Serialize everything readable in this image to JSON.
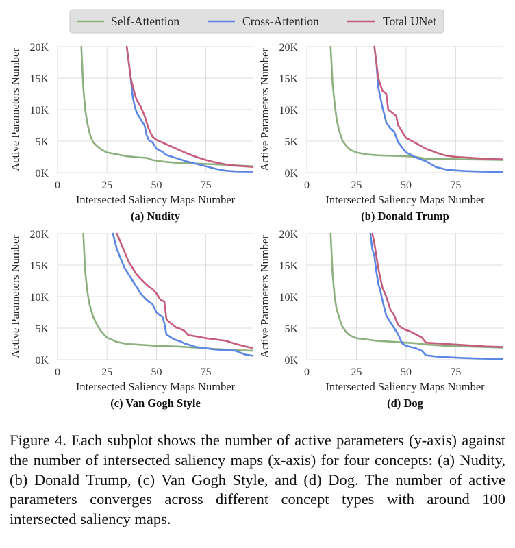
{
  "legend": {
    "entries": [
      {
        "label": "Self-Attention",
        "color": "#8db07f"
      },
      {
        "label": "Cross-Attention",
        "color": "#5b86e5"
      },
      {
        "label": "Total UNet",
        "color": "#c55c7a"
      }
    ]
  },
  "axes": {
    "ylabel": "Active Parameters Number",
    "xlabel": "Intersected Saliency Maps Number",
    "xticks": [
      0,
      25,
      50,
      75
    ],
    "xtick_labels": [
      "0",
      "25",
      "50",
      "75"
    ],
    "yticks": [
      0,
      5000,
      10000,
      15000,
      20000
    ],
    "ytick_labels": [
      "0K",
      "5K",
      "10K",
      "15K",
      "20K"
    ]
  },
  "chart_data": [
    {
      "type": "line",
      "title": "(a) Nudity",
      "xlabel": "Intersected Saliency Maps Number",
      "ylabel": "Active Parameters Number",
      "xlim": [
        0,
        99
      ],
      "ylim": [
        0,
        20000
      ],
      "series": [
        {
          "name": "Self-Attention",
          "color": "#8db07f",
          "x": [
            12,
            13,
            14,
            15,
            16,
            17,
            18,
            20,
            22,
            25,
            30,
            35,
            40,
            45,
            48,
            50,
            55,
            60,
            70,
            80,
            90,
            99
          ],
          "y": [
            20000,
            13500,
            10000,
            8000,
            6500,
            5500,
            4800,
            4200,
            3700,
            3200,
            2900,
            2600,
            2450,
            2350,
            2000,
            1900,
            1700,
            1550,
            1450,
            1300,
            1150,
            1000
          ]
        },
        {
          "name": "Cross-Attention",
          "color": "#5b86e5",
          "x": [
            35,
            37,
            38,
            39,
            40,
            42,
            44,
            45,
            46,
            48,
            50,
            53,
            55,
            60,
            65,
            70,
            75,
            80,
            85,
            90,
            99
          ],
          "y": [
            20000,
            15000,
            12000,
            10500,
            9500,
            8500,
            7500,
            6000,
            5200,
            4800,
            3800,
            3300,
            2800,
            2300,
            1800,
            1400,
            1000,
            600,
            300,
            200,
            150
          ]
        },
        {
          "name": "Total UNet",
          "color": "#c55c7a",
          "x": [
            35,
            37,
            39,
            40,
            42,
            44,
            46,
            48,
            50,
            55,
            60,
            65,
            70,
            75,
            80,
            85,
            90,
            99
          ],
          "y": [
            20000,
            15000,
            12500,
            11500,
            10500,
            9000,
            7000,
            5700,
            5200,
            4500,
            3800,
            3100,
            2500,
            2000,
            1600,
            1300,
            1100,
            900
          ]
        }
      ]
    },
    {
      "type": "line",
      "title": "(b) Donald Trump",
      "xlabel": "Intersected Saliency Maps Number",
      "ylabel": "Active Parameters Number",
      "xlim": [
        0,
        99
      ],
      "ylim": [
        0,
        20000
      ],
      "series": [
        {
          "name": "Self-Attention",
          "color": "#8db07f",
          "x": [
            12,
            13,
            14,
            15,
            16,
            17,
            18,
            20,
            22,
            25,
            30,
            35,
            40,
            45,
            50,
            55,
            60,
            70,
            80,
            90,
            99
          ],
          "y": [
            20000,
            14000,
            11000,
            8500,
            7000,
            6000,
            5000,
            4200,
            3600,
            3200,
            2900,
            2750,
            2700,
            2650,
            2600,
            2500,
            2200,
            2150,
            2100,
            2050,
            2000
          ]
        },
        {
          "name": "Cross-Attention",
          "color": "#5b86e5",
          "x": [
            34,
            35,
            36,
            37,
            38,
            40,
            42,
            44,
            46,
            48,
            50,
            52,
            55,
            60,
            65,
            70,
            75,
            80,
            90,
            99
          ],
          "y": [
            20000,
            17500,
            13500,
            12000,
            10500,
            8000,
            7000,
            6500,
            4800,
            4000,
            3200,
            2900,
            2400,
            1800,
            900,
            500,
            350,
            250,
            150,
            100
          ]
        },
        {
          "name": "Total UNet",
          "color": "#c55c7a",
          "x": [
            34,
            35,
            36,
            37,
            38,
            40,
            41,
            43,
            45,
            46,
            48,
            50,
            53,
            56,
            60,
            65,
            70,
            75,
            80,
            90,
            99
          ],
          "y": [
            20000,
            17500,
            15000,
            14000,
            13000,
            12500,
            10000,
            9500,
            9000,
            7500,
            6500,
            5500,
            5000,
            4500,
            3800,
            3200,
            2700,
            2500,
            2400,
            2200,
            2100
          ]
        }
      ]
    },
    {
      "type": "line",
      "title": "(c) Van Gogh Style",
      "xlabel": "Intersected Saliency Maps Number",
      "ylabel": "Active Parameters Number",
      "xlim": [
        0,
        99
      ],
      "ylim": [
        0,
        20000
      ],
      "series": [
        {
          "name": "Self-Attention",
          "color": "#8db07f",
          "x": [
            13,
            14,
            15,
            16,
            17,
            18,
            20,
            22,
            25,
            30,
            35,
            40,
            45,
            50,
            55,
            60,
            70,
            80,
            90,
            99
          ],
          "y": [
            20000,
            14000,
            11000,
            9000,
            7800,
            6800,
            5500,
            4500,
            3500,
            2800,
            2500,
            2400,
            2300,
            2200,
            2150,
            2100,
            1900,
            1700,
            1500,
            1400
          ]
        },
        {
          "name": "Cross-Attention",
          "color": "#5b86e5",
          "x": [
            28,
            30,
            32,
            34,
            36,
            38,
            40,
            42,
            44,
            46,
            48,
            50,
            52,
            53,
            54,
            55,
            56,
            58,
            60,
            62,
            64,
            66,
            70,
            80,
            90,
            95,
            99
          ],
          "y": [
            20000,
            17500,
            16000,
            14500,
            13500,
            12500,
            11500,
            10500,
            9800,
            9200,
            8800,
            7500,
            7000,
            6800,
            5800,
            4000,
            3800,
            3400,
            3100,
            2900,
            2600,
            2400,
            2000,
            1600,
            1400,
            800,
            600
          ]
        },
        {
          "name": "Total UNet",
          "color": "#c55c7a",
          "x": [
            30,
            32,
            34,
            36,
            38,
            40,
            42,
            44,
            46,
            48,
            50,
            52,
            54,
            55,
            56,
            58,
            60,
            62,
            64,
            66,
            70,
            75,
            80,
            85,
            90,
            95,
            99
          ],
          "y": [
            20000,
            18500,
            17000,
            15500,
            14500,
            13500,
            12800,
            12200,
            11600,
            11200,
            10500,
            9500,
            9200,
            6500,
            6100,
            5600,
            5100,
            4900,
            4600,
            3900,
            3700,
            3400,
            3200,
            3000,
            2500,
            2100,
            1800
          ]
        }
      ]
    },
    {
      "type": "line",
      "title": "(d) Dog",
      "xlabel": "Intersected Saliency Maps Number",
      "ylabel": "Active Parameters Number",
      "xlim": [
        0,
        99
      ],
      "ylim": [
        0,
        20000
      ],
      "series": [
        {
          "name": "Self-Attention",
          "color": "#8db07f",
          "x": [
            12,
            13,
            14,
            15,
            16,
            17,
            18,
            20,
            22,
            25,
            30,
            35,
            40,
            45,
            50,
            55,
            60,
            70,
            80,
            90,
            99
          ],
          "y": [
            20000,
            13500,
            10000,
            8000,
            7000,
            6000,
            5200,
            4300,
            3800,
            3400,
            3200,
            3000,
            2900,
            2800,
            2700,
            2600,
            2400,
            2200,
            2100,
            2000,
            1900
          ]
        },
        {
          "name": "Cross-Attention",
          "color": "#5b86e5",
          "x": [
            32,
            33,
            34,
            35,
            36,
            37,
            38,
            40,
            42,
            44,
            46,
            48,
            50,
            55,
            58,
            60,
            65,
            70,
            80,
            90,
            99
          ],
          "y": [
            20000,
            17500,
            16500,
            14000,
            12000,
            11000,
            9500,
            7000,
            6000,
            5000,
            4000,
            2600,
            2200,
            1800,
            1400,
            700,
            500,
            400,
            250,
            150,
            100
          ]
        },
        {
          "name": "Total UNet",
          "color": "#c55c7a",
          "x": [
            33,
            34,
            35,
            36,
            37,
            38,
            40,
            42,
            44,
            46,
            48,
            50,
            52,
            55,
            58,
            60,
            65,
            70,
            80,
            90,
            99
          ],
          "y": [
            20000,
            18500,
            16500,
            14500,
            13000,
            11500,
            10000,
            8000,
            7000,
            5500,
            5000,
            4700,
            4500,
            4000,
            3500,
            2700,
            2600,
            2500,
            2300,
            2100,
            2000
          ]
        }
      ]
    }
  ],
  "caption": "Figure 4. Each subplot shows the number of active parameters (y-axis) against the number of intersected saliency maps (x-axis) for four concepts: (a) Nudity, (b) Donald Trump, (c) Van Gogh Style, and (d) Dog. The number of active parameters converges across different concept types with around 100 intersected saliency maps."
}
